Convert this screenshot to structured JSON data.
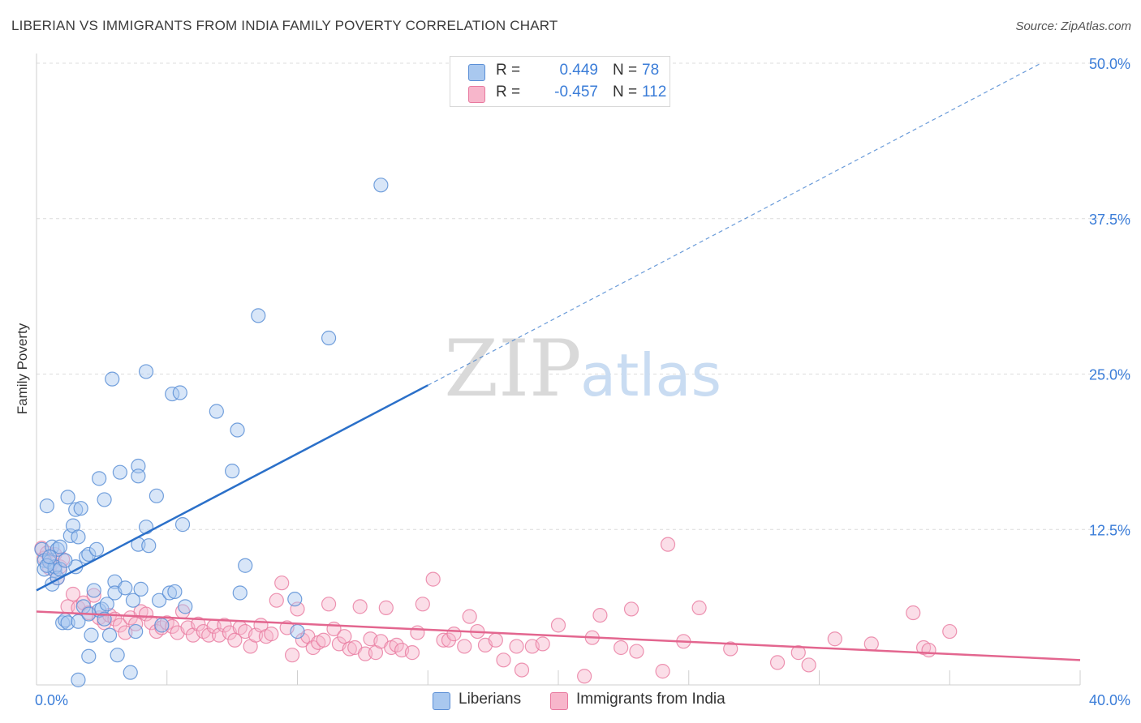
{
  "title": "LIBERIAN VS IMMIGRANTS FROM INDIA FAMILY POVERTY CORRELATION CHART",
  "source": "Source: ZipAtlas.com",
  "legend": {
    "series1": {
      "r_label": "R =",
      "r_value": "0.449",
      "n_label": "N =",
      "n_value": "78"
    },
    "series2": {
      "r_label": "R =",
      "r_value": "-0.457",
      "n_label": "N =",
      "n_value": "112"
    }
  },
  "bottom_legend": {
    "series1": "Liberians",
    "series2": "Immigrants from India"
  },
  "colors": {
    "blue_fill": "#a9c8ef",
    "blue_stroke": "#5b8fd6",
    "blue_line": "#2b70c9",
    "pink_fill": "#f7b6cb",
    "pink_stroke": "#e8799f",
    "pink_line": "#e3668f",
    "tick_text": "#3b7dd8",
    "grid": "#dcdcdc"
  },
  "watermark": {
    "zip": "ZIP",
    "atlas": "atlas"
  },
  "chart_data": {
    "type": "scatter",
    "title": "LIBERIAN VS IMMIGRANTS FROM INDIA FAMILY POVERTY CORRELATION CHART",
    "xlabel": "",
    "ylabel": "Family Poverty",
    "xlim": [
      0,
      40
    ],
    "ylim": [
      0,
      50
    ],
    "x_tick_labels": [
      "0.0%",
      "40.0%"
    ],
    "y_ticks": [
      12.5,
      25.0,
      37.5,
      50.0
    ],
    "y_tick_labels": [
      "12.5%",
      "25.0%",
      "37.5%",
      "50.0%"
    ],
    "series": [
      {
        "name": "Liberians",
        "color": "#a9c8ef",
        "trendline": {
          "x0": 0,
          "y0": 7.6,
          "x1": 15,
          "y1": 24.1,
          "dashed_to": {
            "x": 38.5,
            "y": 50.0
          }
        },
        "points": [
          [
            0.2,
            10.9
          ],
          [
            0.3,
            10.0
          ],
          [
            0.3,
            9.3
          ],
          [
            0.4,
            14.4
          ],
          [
            0.5,
            9.9
          ],
          [
            0.6,
            11.1
          ],
          [
            0.6,
            8.1
          ],
          [
            0.7,
            9.2
          ],
          [
            0.7,
            9.5
          ],
          [
            0.8,
            10.9
          ],
          [
            0.8,
            8.6
          ],
          [
            0.9,
            11.1
          ],
          [
            0.9,
            9.3
          ],
          [
            1.0,
            5.0
          ],
          [
            1.1,
            5.2
          ],
          [
            1.2,
            15.1
          ],
          [
            1.2,
            5.0
          ],
          [
            1.3,
            12.0
          ],
          [
            1.4,
            12.8
          ],
          [
            1.5,
            9.5
          ],
          [
            1.5,
            14.1
          ],
          [
            1.6,
            0.4
          ],
          [
            1.6,
            11.9
          ],
          [
            1.6,
            5.1
          ],
          [
            1.7,
            14.2
          ],
          [
            1.8,
            6.3
          ],
          [
            1.9,
            10.3
          ],
          [
            2.0,
            5.7
          ],
          [
            2.0,
            2.3
          ],
          [
            2.0,
            10.5
          ],
          [
            2.1,
            4.0
          ],
          [
            2.2,
            7.6
          ],
          [
            2.3,
            10.9
          ],
          [
            2.4,
            16.6
          ],
          [
            2.4,
            6.0
          ],
          [
            2.5,
            6.1
          ],
          [
            2.6,
            5.3
          ],
          [
            2.6,
            14.9
          ],
          [
            2.7,
            6.5
          ],
          [
            2.8,
            4.0
          ],
          [
            2.9,
            24.6
          ],
          [
            3.0,
            8.3
          ],
          [
            3.0,
            7.4
          ],
          [
            3.1,
            2.4
          ],
          [
            3.2,
            17.1
          ],
          [
            3.4,
            7.8
          ],
          [
            3.6,
            1.0
          ],
          [
            3.7,
            6.8
          ],
          [
            3.8,
            4.3
          ],
          [
            3.9,
            11.3
          ],
          [
            3.9,
            17.6
          ],
          [
            3.9,
            16.8
          ],
          [
            4.0,
            7.7
          ],
          [
            4.2,
            25.2
          ],
          [
            4.2,
            12.7
          ],
          [
            4.3,
            11.2
          ],
          [
            4.6,
            15.2
          ],
          [
            4.7,
            6.8
          ],
          [
            4.8,
            4.8
          ],
          [
            5.1,
            7.4
          ],
          [
            5.2,
            23.4
          ],
          [
            5.3,
            7.5
          ],
          [
            5.5,
            23.5
          ],
          [
            5.6,
            12.9
          ],
          [
            5.7,
            6.3
          ],
          [
            6.9,
            22.0
          ],
          [
            7.5,
            17.2
          ],
          [
            7.7,
            20.5
          ],
          [
            7.8,
            7.4
          ],
          [
            8.0,
            9.6
          ],
          [
            8.5,
            29.7
          ],
          [
            9.9,
            6.9
          ],
          [
            10.0,
            4.3
          ],
          [
            11.2,
            27.9
          ],
          [
            13.2,
            40.2
          ],
          [
            0.4,
            9.6
          ],
          [
            0.5,
            10.3
          ],
          [
            1.1,
            10.0
          ]
        ]
      },
      {
        "name": "Immigrants from India",
        "color": "#f7b6cb",
        "trendline": {
          "x0": 0,
          "y0": 5.9,
          "x1": 40,
          "y1": 2.0
        },
        "points": [
          [
            0.2,
            11.0
          ],
          [
            0.3,
            10.2
          ],
          [
            0.4,
            10.6
          ],
          [
            0.5,
            9.4
          ],
          [
            0.6,
            9.8
          ],
          [
            0.7,
            10.5
          ],
          [
            0.8,
            8.6
          ],
          [
            0.9,
            9.5
          ],
          [
            1.0,
            10.1
          ],
          [
            1.2,
            6.3
          ],
          [
            1.4,
            7.3
          ],
          [
            1.6,
            6.2
          ],
          [
            1.8,
            6.6
          ],
          [
            2.0,
            5.8
          ],
          [
            2.2,
            7.2
          ],
          [
            2.4,
            5.4
          ],
          [
            2.6,
            5.0
          ],
          [
            2.8,
            5.6
          ],
          [
            3.0,
            5.3
          ],
          [
            3.2,
            4.8
          ],
          [
            3.4,
            4.2
          ],
          [
            3.6,
            5.4
          ],
          [
            3.8,
            4.9
          ],
          [
            4.0,
            5.9
          ],
          [
            4.2,
            5.7
          ],
          [
            4.4,
            5.0
          ],
          [
            4.6,
            4.3
          ],
          [
            4.8,
            4.6
          ],
          [
            5.0,
            5.0
          ],
          [
            5.2,
            4.7
          ],
          [
            5.4,
            4.2
          ],
          [
            5.6,
            5.9
          ],
          [
            5.8,
            4.6
          ],
          [
            6.0,
            4.0
          ],
          [
            6.2,
            4.9
          ],
          [
            6.4,
            4.3
          ],
          [
            6.6,
            4.0
          ],
          [
            6.8,
            4.7
          ],
          [
            7.0,
            4.0
          ],
          [
            7.2,
            4.8
          ],
          [
            7.4,
            4.2
          ],
          [
            7.6,
            3.6
          ],
          [
            7.8,
            4.6
          ],
          [
            8.0,
            4.3
          ],
          [
            8.2,
            3.1
          ],
          [
            8.4,
            4.0
          ],
          [
            8.6,
            4.8
          ],
          [
            8.8,
            3.9
          ],
          [
            9.0,
            4.1
          ],
          [
            9.2,
            6.8
          ],
          [
            9.4,
            8.2
          ],
          [
            9.6,
            4.6
          ],
          [
            9.8,
            2.4
          ],
          [
            10.0,
            6.1
          ],
          [
            10.2,
            3.6
          ],
          [
            10.4,
            3.9
          ],
          [
            10.6,
            3.0
          ],
          [
            10.8,
            3.4
          ],
          [
            11.0,
            3.6
          ],
          [
            11.2,
            6.5
          ],
          [
            11.4,
            4.5
          ],
          [
            11.6,
            3.3
          ],
          [
            11.8,
            3.9
          ],
          [
            12.0,
            2.9
          ],
          [
            12.2,
            3.0
          ],
          [
            12.4,
            6.3
          ],
          [
            12.6,
            2.5
          ],
          [
            12.8,
            3.7
          ],
          [
            13.0,
            2.6
          ],
          [
            13.2,
            3.5
          ],
          [
            13.4,
            6.2
          ],
          [
            13.6,
            3.0
          ],
          [
            13.8,
            3.2
          ],
          [
            14.0,
            2.8
          ],
          [
            14.4,
            2.6
          ],
          [
            14.6,
            4.2
          ],
          [
            14.8,
            6.5
          ],
          [
            15.2,
            8.5
          ],
          [
            15.6,
            3.6
          ],
          [
            15.8,
            3.6
          ],
          [
            16.0,
            4.1
          ],
          [
            16.4,
            3.1
          ],
          [
            16.6,
            5.5
          ],
          [
            16.9,
            4.3
          ],
          [
            17.2,
            3.2
          ],
          [
            17.6,
            3.6
          ],
          [
            17.9,
            2.0
          ],
          [
            18.4,
            3.1
          ],
          [
            18.6,
            1.2
          ],
          [
            19.0,
            3.1
          ],
          [
            19.4,
            3.3
          ],
          [
            20.0,
            4.8
          ],
          [
            21.0,
            0.7
          ],
          [
            21.3,
            3.8
          ],
          [
            21.6,
            5.6
          ],
          [
            22.4,
            3.0
          ],
          [
            22.8,
            6.1
          ],
          [
            23.0,
            2.7
          ],
          [
            24.0,
            1.1
          ],
          [
            24.2,
            11.3
          ],
          [
            24.8,
            3.5
          ],
          [
            25.4,
            6.2
          ],
          [
            26.6,
            2.9
          ],
          [
            28.4,
            1.8
          ],
          [
            29.2,
            2.6
          ],
          [
            29.6,
            1.6
          ],
          [
            30.6,
            3.7
          ],
          [
            32.0,
            3.3
          ],
          [
            33.6,
            5.8
          ],
          [
            34.0,
            3.0
          ],
          [
            34.2,
            2.8
          ],
          [
            35.0,
            4.3
          ]
        ]
      }
    ]
  }
}
